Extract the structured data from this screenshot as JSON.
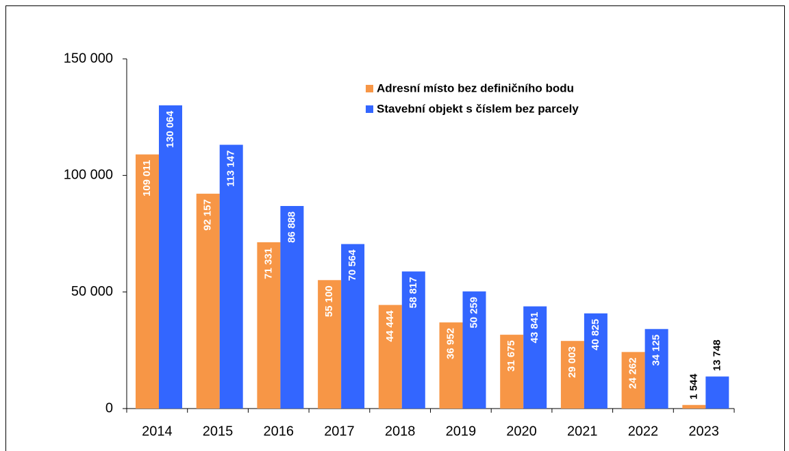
{
  "chart_data": {
    "type": "bar",
    "categories": [
      "2014",
      "2015",
      "2016",
      "2017",
      "2018",
      "2019",
      "2020",
      "2021",
      "2022",
      "2023"
    ],
    "series": [
      {
        "name": "Adresní místo bez definičního bodu",
        "color": "#f79646",
        "values": [
          109011,
          92157,
          71331,
          55100,
          44444,
          36952,
          31675,
          29003,
          24262,
          1544
        ],
        "value_labels": [
          "109 011",
          "92 157",
          "71 331",
          "55 100",
          "44 444",
          "36 952",
          "31 675",
          "29 003",
          "24 262",
          "1 544"
        ]
      },
      {
        "name": "Stavební objekt s číslem bez parcely",
        "color": "#3366ff",
        "values": [
          130064,
          113147,
          86888,
          70564,
          58817,
          50259,
          43841,
          40825,
          34125,
          13748
        ],
        "value_labels": [
          "130 064",
          "113 147",
          "86 888",
          "70 564",
          "58 817",
          "50 259",
          "43 841",
          "40 825",
          "34 125",
          "13 748"
        ]
      }
    ],
    "ylim": [
      0,
      150000
    ],
    "yticks": [
      {
        "value": 0,
        "label": "0"
      },
      {
        "value": 50000,
        "label": "50 000"
      },
      {
        "value": 100000,
        "label": "100 000"
      },
      {
        "value": 150000,
        "label": "150 000"
      }
    ],
    "legend": "top-right"
  }
}
